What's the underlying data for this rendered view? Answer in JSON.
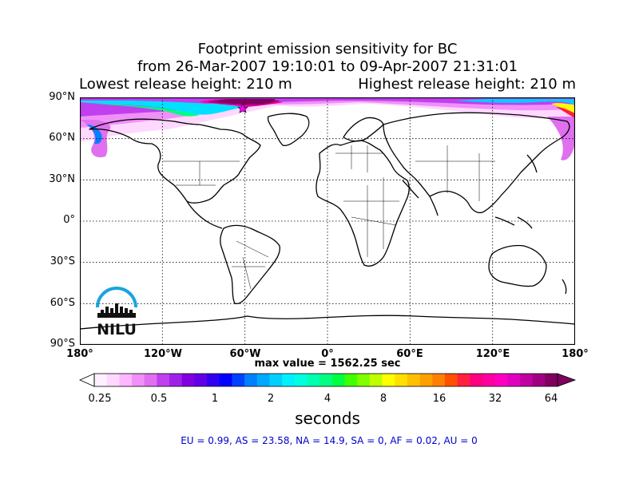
{
  "title": {
    "line1": "Footprint emission sensitivity for BC",
    "line2": "from 26-Mar-2007 19:10:01 to 09-Apr-2007 21:31:01",
    "left": "Lowest release height: 210 m",
    "right": "Highest release height: 210 m"
  },
  "axes": {
    "lat_labels": [
      "90°N",
      "60°N",
      "30°N",
      "0°",
      "30°S",
      "60°S",
      "90°S"
    ],
    "lon_labels": [
      "180°",
      "120°W",
      "60°W",
      "0°",
      "60°E",
      "120°E",
      "180°"
    ],
    "lat_range": [
      -90,
      90
    ],
    "lon_range": [
      -180,
      180
    ],
    "grid": true
  },
  "logo": {
    "text": "NILU"
  },
  "max_value": "max value = 1562.25 sec",
  "colorbar": {
    "ticks": [
      "0.25",
      "0.5",
      "1",
      "2",
      "4",
      "8",
      "16",
      "32",
      "64"
    ],
    "units": "seconds",
    "colors": [
      "#fff0ff",
      "#ffd8ff",
      "#ffb8ff",
      "#f090f8",
      "#e070f0",
      "#c040f0",
      "#a020e8",
      "#8000e0",
      "#6000e8",
      "#3000f0",
      "#0000ff",
      "#0040ff",
      "#0080ff",
      "#00a8ff",
      "#00d0ff",
      "#00f0ff",
      "#00ffe0",
      "#00ffb0",
      "#00ff80",
      "#00ff40",
      "#40ff00",
      "#80ff00",
      "#c0ff00",
      "#ffff00",
      "#ffe000",
      "#ffc000",
      "#ffa000",
      "#ff8000",
      "#ff5000",
      "#ff2040",
      "#ff0080",
      "#ff00a0",
      "#ff00c0",
      "#e000c0",
      "#c000a0",
      "#a00080",
      "#800060"
    ]
  },
  "stats": "EU = 0.99,  AS = 23.58,  NA = 14.9,  SA = 0,  AF = 0.02,  AU = 0"
}
